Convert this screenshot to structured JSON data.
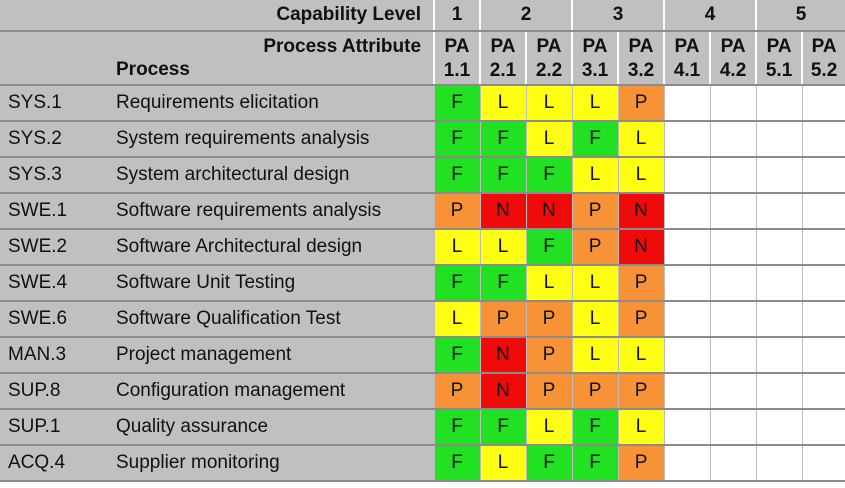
{
  "header": {
    "capability_label": "Capability Level",
    "levels": [
      "1",
      "2",
      "3",
      "4",
      "5"
    ],
    "process_attribute_label": "Process Attribute",
    "process_label": "Process",
    "attributes": [
      {
        "top": "PA",
        "num": "1.1"
      },
      {
        "top": "PA",
        "num": "2.1"
      },
      {
        "top": "PA",
        "num": "2.2"
      },
      {
        "top": "PA",
        "num": "3.1"
      },
      {
        "top": "PA",
        "num": "3.2"
      },
      {
        "top": "PA",
        "num": "4.1"
      },
      {
        "top": "PA",
        "num": "4.2"
      },
      {
        "top": "PA",
        "num": "5.1"
      },
      {
        "top": "PA",
        "num": "5.2"
      }
    ]
  },
  "rows": [
    {
      "id": "SYS.1",
      "name": "Requirements elicitation",
      "ratings": [
        "F",
        "L",
        "L",
        "L",
        "P",
        "",
        "",
        "",
        ""
      ]
    },
    {
      "id": "SYS.2",
      "name": "System requirements analysis",
      "ratings": [
        "F",
        "F",
        "L",
        "F",
        "L",
        "",
        "",
        "",
        ""
      ]
    },
    {
      "id": "SYS.3",
      "name": "System architectural design",
      "ratings": [
        "F",
        "F",
        "F",
        "L",
        "L",
        "",
        "",
        "",
        ""
      ]
    },
    {
      "id": "SWE.1",
      "name": "Software requirements analysis",
      "ratings": [
        "P",
        "N",
        "N",
        "P",
        "N",
        "",
        "",
        "",
        ""
      ]
    },
    {
      "id": "SWE.2",
      "name": "Software Architectural design",
      "ratings": [
        "L",
        "L",
        "F",
        "P",
        "N",
        "",
        "",
        "",
        ""
      ]
    },
    {
      "id": "SWE.4",
      "name": "Software Unit Testing",
      "ratings": [
        "F",
        "F",
        "L",
        "L",
        "P",
        "",
        "",
        "",
        ""
      ]
    },
    {
      "id": "SWE.6",
      "name": "Software Qualification Test",
      "ratings": [
        "L",
        "P",
        "P",
        "L",
        "P",
        "",
        "",
        "",
        ""
      ]
    },
    {
      "id": "MAN.3",
      "name": "Project management",
      "ratings": [
        "F",
        "N",
        "P",
        "L",
        "L",
        "",
        "",
        "",
        ""
      ]
    },
    {
      "id": "SUP.8",
      "name": "Configuration management",
      "ratings": [
        "P",
        "N",
        "P",
        "P",
        "P",
        "",
        "",
        "",
        ""
      ]
    },
    {
      "id": "SUP.1",
      "name": "Quality assurance",
      "ratings": [
        "F",
        "F",
        "L",
        "F",
        "L",
        "",
        "",
        "",
        ""
      ]
    },
    {
      "id": "ACQ.4",
      "name": "Supplier monitoring",
      "ratings": [
        "F",
        "L",
        "F",
        "F",
        "P",
        "",
        "",
        "",
        ""
      ]
    }
  ],
  "rating_colors": {
    "F": "#22e022",
    "L": "#ffff14",
    "P": "#f79236",
    "N": "#f00b0b"
  }
}
